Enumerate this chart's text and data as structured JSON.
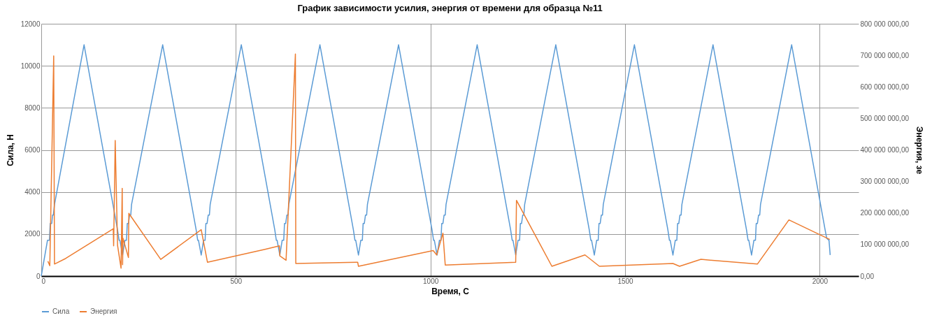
{
  "chart_data": {
    "type": "line",
    "title": "График зависимости усилия, энергия от времени для образца №11",
    "xlabel": "Время, С",
    "ylabel": "Сила, Н",
    "y2label": "Энергия, зе",
    "xlim": [
      0,
      2100
    ],
    "xticks": [
      0,
      500,
      1000,
      1500,
      2000
    ],
    "ylim": [
      0,
      12000
    ],
    "yticks": [
      0,
      2000,
      4000,
      6000,
      8000,
      10000,
      12000
    ],
    "y2lim": [
      0,
      800000000
    ],
    "y2ticks": [
      {
        "value": 0,
        "label": "0,00"
      },
      {
        "value": 100000000,
        "label": "100 000 000,00"
      },
      {
        "value": 200000000,
        "label": "200 000 000,00"
      },
      {
        "value": 300000000,
        "label": "300 000 000,00"
      },
      {
        "value": 400000000,
        "label": "400 000 000,00"
      },
      {
        "value": 500000000,
        "label": "500 000 000,00"
      },
      {
        "value": 600000000,
        "label": "600 000 000,00"
      },
      {
        "value": 700000000,
        "label": "700 000 000,00"
      },
      {
        "value": 800000000,
        "label": "800 000 000,00"
      }
    ],
    "grid": true,
    "legend": "bottom",
    "marker": "none",
    "line_style": "solid",
    "series": [
      {
        "name": "Сила",
        "color": "#5b9bd5",
        "x": [
          0,
          16,
          21,
          23,
          27,
          29,
          31,
          34,
          110,
          196,
          200,
          202,
          209,
          215,
          219,
          221,
          224,
          227,
          230,
          232,
          312,
          398,
          402,
          404,
          411,
          417,
          421,
          423,
          426,
          429,
          432,
          434,
          514,
          600,
          604,
          606,
          613,
          619,
          623,
          625,
          628,
          631,
          634,
          636,
          716,
          802,
          806,
          808,
          815,
          821,
          825,
          827,
          830,
          833,
          836,
          838,
          918,
          1004,
          1008,
          1010,
          1017,
          1023,
          1027,
          1029,
          1032,
          1035,
          1038,
          1040,
          1120,
          1206,
          1210,
          1212,
          1219,
          1225,
          1229,
          1231,
          1234,
          1237,
          1240,
          1242,
          1322,
          1408,
          1412,
          1414,
          1421,
          1427,
          1431,
          1433,
          1436,
          1439,
          1442,
          1444,
          1524,
          1610,
          1614,
          1616,
          1623,
          1629,
          1633,
          1635,
          1638,
          1641,
          1644,
          1646,
          1726,
          1812,
          1816,
          1818,
          1825,
          1831,
          1835,
          1837,
          1840,
          1843,
          1846,
          1848,
          1928,
          2014,
          2018,
          2024,
          2027
        ],
        "values": [
          0,
          1700,
          1700,
          2500,
          2500,
          2900,
          2900,
          3400,
          11000,
          2200,
          1700,
          1700,
          1000,
          1700,
          1700,
          2500,
          2500,
          2900,
          2900,
          3400,
          11000,
          2200,
          1700,
          1700,
          1000,
          1700,
          1700,
          2500,
          2500,
          2900,
          2900,
          3400,
          11000,
          2200,
          1700,
          1700,
          1000,
          1700,
          1700,
          2500,
          2500,
          2900,
          2900,
          3400,
          11000,
          2200,
          1700,
          1700,
          1000,
          1700,
          1700,
          2500,
          2500,
          2900,
          2900,
          3400,
          11000,
          2200,
          1700,
          1700,
          1000,
          1700,
          1700,
          2500,
          2500,
          2900,
          2900,
          3400,
          11000,
          2200,
          1700,
          1700,
          1000,
          1700,
          1700,
          2500,
          2500,
          2900,
          2900,
          3400,
          11000,
          2200,
          1700,
          1700,
          1000,
          1700,
          1700,
          2500,
          2500,
          2900,
          2900,
          3400,
          11000,
          2200,
          1700,
          1700,
          1000,
          1700,
          1700,
          2500,
          2500,
          2900,
          2900,
          3400,
          11000,
          2200,
          1700,
          1700,
          1000,
          1700,
          1700,
          2500,
          2500,
          2900,
          2900,
          3400,
          11000,
          2200,
          1800,
          1700,
          1000
        ]
      },
      {
        "name": "Энергия",
        "color": "#ed7d31",
        "axis": "y2",
        "x": [
          17,
          22,
          32,
          34,
          63,
          185,
          186,
          190,
          196,
          205,
          208,
          209,
          210,
          224,
          225,
          307,
          411,
          427,
          575,
          612,
          613,
          629,
          653,
          654,
          813,
          815,
          1007,
          1016,
          1032,
          1038,
          1219,
          1221,
          1312,
          1397,
          1434,
          1623,
          1640,
          1695,
          1840,
          1921,
          2026
        ],
        "values": [
          47000000,
          33000000,
          698000000,
          38000000,
          56000000,
          150000000,
          96000000,
          430000000,
          98000000,
          25000000,
          278000000,
          36000000,
          120000000,
          59000000,
          199000000,
          53000000,
          147000000,
          44000000,
          85000000,
          96000000,
          64000000,
          50000000,
          704000000,
          40000000,
          44000000,
          31000000,
          81000000,
          67000000,
          136000000,
          35000000,
          44000000,
          240000000,
          31000000,
          67000000,
          31000000,
          40000000,
          31000000,
          53000000,
          38000000,
          178000000,
          116000000
        ]
      }
    ]
  }
}
